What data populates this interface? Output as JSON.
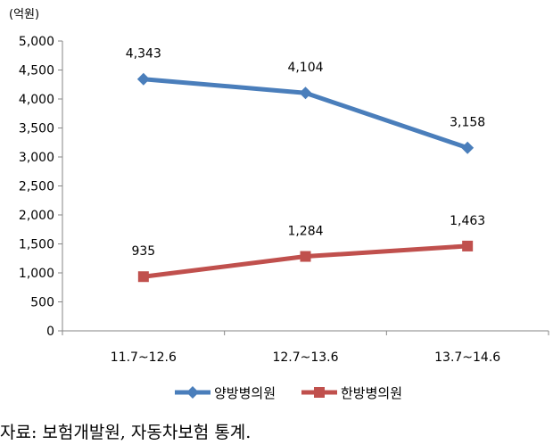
{
  "chart_data": {
    "type": "line",
    "unit": "(억원)",
    "categories": [
      "11.7~12.6",
      "12.7~13.6",
      "13.7~14.6"
    ],
    "ylim": [
      0,
      5000
    ],
    "yticks": [
      "0",
      "500",
      "1,000",
      "1,500",
      "2,000",
      "2,500",
      "3,000",
      "3,500",
      "4,000",
      "4,500",
      "5,000"
    ],
    "grid": false,
    "legend_position": "bottom",
    "series": [
      {
        "name": "양방병의원",
        "values": [
          4343,
          4104,
          3158
        ],
        "labels": [
          "4,343",
          "4,104",
          "3,158"
        ],
        "color": "#4a7ebb",
        "marker": "diamond"
      },
      {
        "name": "한방병의원",
        "values": [
          935,
          1284,
          1463
        ],
        "labels": [
          "935",
          "1,284",
          "1,463"
        ],
        "color": "#c0504d",
        "marker": "square"
      }
    ]
  },
  "source_note": "자료: 보험개발원, 자동차보험 통계."
}
